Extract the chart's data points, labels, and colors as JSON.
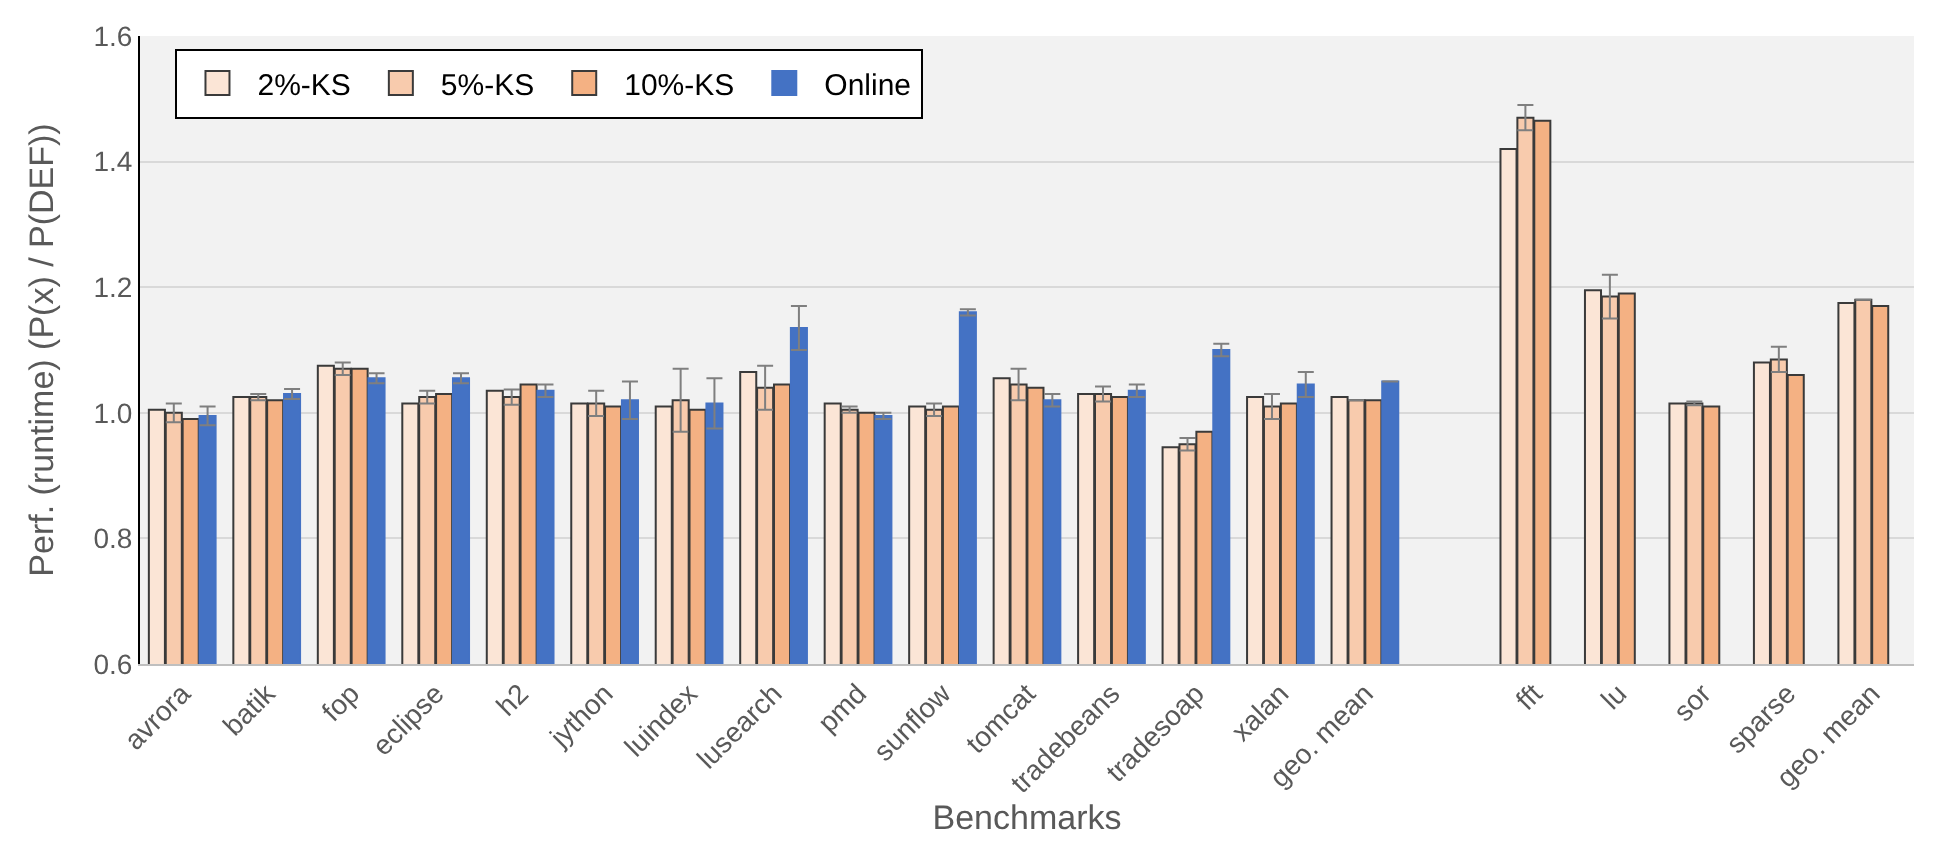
{
  "chart_data": {
    "type": "bar",
    "xlabel": "Benchmarks",
    "ylabel": "Perf. (runtime) (P(x) / P(DEF))",
    "categories": [
      "avrora",
      "batik",
      "fop",
      "eclipse",
      "h2",
      "jython",
      "luindex",
      "lusearch",
      "pmd",
      "sunflow",
      "tomcat",
      "tradebeans",
      "tradesoap",
      "xalan",
      "geo. mean",
      null,
      "fft",
      "lu",
      "sor",
      "sparse",
      "geo. mean"
    ],
    "ylim": [
      0.6,
      1.6
    ],
    "yticks": [
      {
        "value": 0.6,
        "label": "0.6"
      },
      {
        "value": 0.8,
        "label": "0.8"
      },
      {
        "value": 1.0,
        "label": "1.0"
      },
      {
        "value": 1.2,
        "label": "1.2"
      },
      {
        "value": 1.4,
        "label": "1.4"
      },
      {
        "value": 1.6,
        "label": "1.6"
      }
    ],
    "grid": "y",
    "legend": "top left",
    "series": [
      {
        "name": "2%-KS",
        "color": "#fbe5d6",
        "values": [
          1.005,
          1.025,
          1.075,
          1.015,
          1.035,
          1.015,
          1.01,
          1.065,
          1.015,
          1.01,
          1.055,
          1.03,
          0.945,
          1.025,
          1.025,
          null,
          1.42,
          1.195,
          1.015,
          1.08,
          1.175
        ]
      },
      {
        "name": "5%-KS",
        "color": "#f8cbad",
        "values": [
          1.0,
          1.025,
          1.07,
          1.025,
          1.025,
          1.015,
          1.02,
          1.04,
          1.005,
          1.005,
          1.045,
          1.03,
          0.95,
          1.01,
          1.02,
          null,
          1.47,
          1.185,
          1.015,
          1.085,
          1.18
        ],
        "errors": [
          0.015,
          0.005,
          0.01,
          0.01,
          0.012,
          0.02,
          0.05,
          0.035,
          0.005,
          0.01,
          0.025,
          0.012,
          0.01,
          0.02,
          null,
          null,
          0.02,
          0.035,
          0.003,
          0.02,
          null
        ]
      },
      {
        "name": "10%-KS",
        "color": "#f4b183",
        "values": [
          0.99,
          1.02,
          1.07,
          1.03,
          1.045,
          1.01,
          1.005,
          1.045,
          1.0,
          1.01,
          1.04,
          1.025,
          0.97,
          1.015,
          1.02,
          null,
          1.465,
          1.19,
          1.01,
          1.06,
          1.17
        ]
      },
      {
        "name": "Online",
        "color": "#4472c4",
        "values": [
          0.995,
          1.03,
          1.055,
          1.055,
          1.035,
          1.02,
          1.015,
          1.135,
          0.995,
          1.16,
          1.02,
          1.035,
          1.1,
          1.045,
          1.05,
          null,
          null,
          null,
          null,
          null,
          null
        ],
        "errors": [
          0.015,
          0.008,
          0.008,
          0.008,
          0.01,
          0.03,
          0.04,
          0.035,
          0.005,
          0.005,
          0.01,
          0.01,
          0.01,
          0.02,
          null,
          null,
          null,
          null,
          null,
          null,
          null
        ]
      }
    ]
  }
}
